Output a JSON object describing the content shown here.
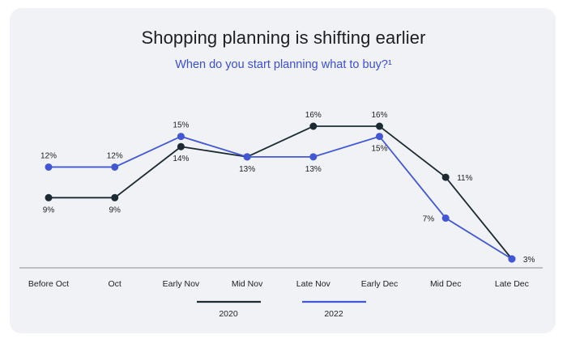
{
  "header": {
    "title": "Shopping planning is shifting earlier",
    "subtitle": "When do you start planning what to buy?¹"
  },
  "colors": {
    "series_2020": "#1c2b33",
    "series_2022": "#4257d6",
    "background": "#f0f2f5",
    "axis": "#8a8d91"
  },
  "chart_data": {
    "type": "line",
    "categories": [
      "Before Oct",
      "Oct",
      "Early Nov",
      "Mid Nov",
      "Late Nov",
      "Early Dec",
      "Mid Dec",
      "Late Dec"
    ],
    "series": [
      {
        "name": "2020",
        "values": [
          9,
          9,
          14,
          13,
          16,
          16,
          11,
          3
        ],
        "labels": [
          "9%",
          "9%",
          "14%",
          "13%",
          "16%",
          "16%",
          "11%",
          "3%"
        ]
      },
      {
        "name": "2022",
        "values": [
          12,
          12,
          15,
          13,
          13,
          15,
          7,
          3
        ],
        "labels": [
          "12%",
          "12%",
          "15%",
          "13%",
          "13%",
          "15%",
          "7%",
          "3%"
        ]
      }
    ],
    "ylim": [
      3,
      16
    ],
    "grid": false,
    "legend_placement": "bottom",
    "xlabel": "",
    "ylabel": ""
  }
}
